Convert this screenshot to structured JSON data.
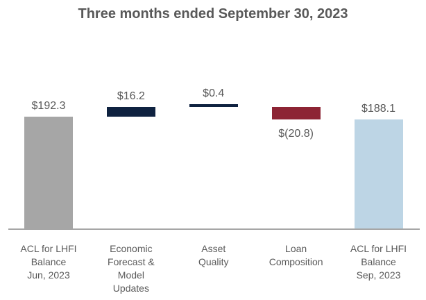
{
  "chart_data": {
    "type": "bar",
    "subtype": "waterfall",
    "title": "Three months ended September 30, 2023",
    "xlabel": "",
    "ylabel": "",
    "ylim": [
      0,
      230
    ],
    "grid": false,
    "y_axis_visible": false,
    "baseline_visible": true,
    "legend": "none",
    "steps": [
      {
        "category_lines": [
          "ACL for LHFI",
          "Balance",
          "Jun, 2023"
        ],
        "value": 192.3,
        "value_label": "$192.3",
        "kind": "total",
        "color": "#a6a6a6"
      },
      {
        "category_lines": [
          "Economic",
          "Forecast &",
          "Model",
          "Updates"
        ],
        "value": 16.2,
        "value_label": "$16.2",
        "kind": "increase",
        "color": "#0f2240"
      },
      {
        "category_lines": [
          "Asset",
          "Quality"
        ],
        "value": 0.4,
        "value_label": "$0.4",
        "kind": "increase",
        "color": "#0f2240"
      },
      {
        "category_lines": [
          "Loan",
          "Composition"
        ],
        "value": -20.8,
        "value_label": "$(20.8)",
        "kind": "decrease",
        "color": "#8d2434"
      },
      {
        "category_lines": [
          "ACL for LHFI",
          "Balance",
          "Sep, 2023"
        ],
        "value": 188.1,
        "value_label": "$188.1",
        "kind": "total",
        "color": "#bdd5e5"
      }
    ],
    "colors": {
      "title_text": "#595959",
      "label_text": "#595959",
      "axis_line": "#a6a6a6",
      "increase": "#0f2240",
      "decrease": "#8d2434",
      "start_total": "#a6a6a6",
      "end_total": "#bdd5e5",
      "background": "#ffffff"
    }
  }
}
